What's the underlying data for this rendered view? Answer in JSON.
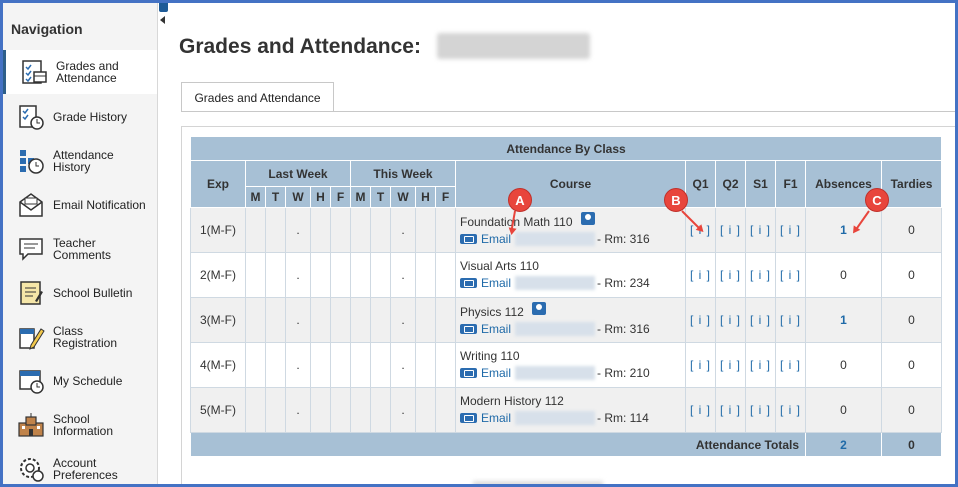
{
  "sidebar": {
    "title": "Navigation",
    "items": [
      {
        "label": "Grades and Attendance",
        "icon": "grades-attendance-icon"
      },
      {
        "label": "Grade History",
        "icon": "grade-history-icon"
      },
      {
        "label": "Attendance History",
        "icon": "attendance-history-icon"
      },
      {
        "label": "Email Notification",
        "icon": "email-notification-icon"
      },
      {
        "label": "Teacher Comments",
        "icon": "teacher-comments-icon"
      },
      {
        "label": "School Bulletin",
        "icon": "school-bulletin-icon"
      },
      {
        "label": "Class Registration",
        "icon": "class-registration-icon"
      },
      {
        "label": "My Schedule",
        "icon": "my-schedule-icon"
      },
      {
        "label": "School Information",
        "icon": "school-information-icon"
      },
      {
        "label": "Account Preferences",
        "icon": "account-preferences-icon"
      }
    ]
  },
  "header": {
    "title": "Grades and Attendance:"
  },
  "tab": {
    "label": "Grades and Attendance"
  },
  "table": {
    "caption": "Attendance By Class",
    "headers": {
      "exp": "Exp",
      "last_week": "Last Week",
      "this_week": "This Week",
      "course": "Course",
      "q1": "Q1",
      "q2": "Q2",
      "s1": "S1",
      "f1": "F1",
      "absences": "Absences",
      "tardies": "Tardies"
    },
    "days": [
      "M",
      "T",
      "W",
      "H",
      "F"
    ],
    "rows": [
      {
        "exp": "1(M-F)",
        "lw_dot": ".",
        "tw_dot": ".",
        "course": "Foundation Math 110",
        "email": "Email",
        "room": "- Rm: 316",
        "q1": "[ i ]",
        "q2": "[ i ]",
        "s1": "[ i ]",
        "f1": "[ i ]",
        "absences": "1",
        "tardies": "0"
      },
      {
        "exp": "2(M-F)",
        "lw_dot": ".",
        "tw_dot": ".",
        "course": "Visual Arts 110",
        "email": "Email",
        "room": "- Rm: 234",
        "q1": "[ i ]",
        "q2": "[ i ]",
        "s1": "[ i ]",
        "f1": "[ i ]",
        "absences": "0",
        "tardies": "0"
      },
      {
        "exp": "3(M-F)",
        "lw_dot": ".",
        "tw_dot": ".",
        "course": "Physics 112",
        "email": "Email",
        "room": "- Rm: 316",
        "q1": "[ i ]",
        "q2": "[ i ]",
        "s1": "[ i ]",
        "f1": "[ i ]",
        "absences": "1",
        "tardies": "0"
      },
      {
        "exp": "4(M-F)",
        "lw_dot": ".",
        "tw_dot": ".",
        "course": "Writing 110",
        "email": "Email",
        "room": "- Rm: 210",
        "q1": "[ i ]",
        "q2": "[ i ]",
        "s1": "[ i ]",
        "f1": "[ i ]",
        "absences": "0",
        "tardies": "0"
      },
      {
        "exp": "5(M-F)",
        "lw_dot": ".",
        "tw_dot": ".",
        "course": "Modern History 112",
        "email": "Email",
        "room": "- Rm: 114",
        "q1": "[ i ]",
        "q2": "[ i ]",
        "s1": "[ i ]",
        "f1": "[ i ]",
        "absences": "0",
        "tardies": "0"
      }
    ],
    "totals": {
      "label": "Attendance Totals",
      "absences": "2",
      "tardies": "0"
    }
  },
  "annotations": {
    "a": "A",
    "b": "B",
    "c": "C"
  },
  "colors": {
    "frame": "#4472c4",
    "header_bg": "#a7c0d5",
    "link": "#1f6aa8",
    "marker": "#e8453c"
  }
}
